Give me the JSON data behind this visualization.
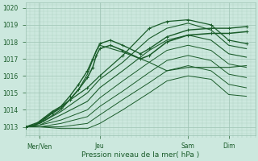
{
  "xlabel": "Pression niveau de la mer( hPa )",
  "ylim": [
    1012.5,
    1020.3
  ],
  "xlim": [
    0,
    130
  ],
  "yticks": [
    1013,
    1014,
    1015,
    1016,
    1017,
    1018,
    1019,
    1020
  ],
  "xtick_positions": [
    8,
    42,
    92,
    115
  ],
  "xtick_labels": [
    "Mer/Ven",
    "Jeu",
    "Sam",
    "Dim"
  ],
  "bg_color": "#cce8de",
  "grid_color": "#9ec4b4",
  "line_color": "#1a5c2a",
  "lines": [
    {
      "x": [
        0,
        8,
        20,
        35,
        42,
        55,
        70,
        80,
        92,
        105,
        115,
        125
      ],
      "y": [
        1013.0,
        1013.3,
        1014.2,
        1015.3,
        1016.0,
        1017.2,
        1018.8,
        1019.2,
        1019.3,
        1019.0,
        1018.1,
        1017.9
      ],
      "lw": 0.9,
      "mk": "+"
    },
    {
      "x": [
        0,
        8,
        20,
        35,
        42,
        55,
        70,
        80,
        92,
        105,
        115,
        125
      ],
      "y": [
        1013.0,
        1013.2,
        1013.9,
        1015.0,
        1015.8,
        1016.8,
        1018.2,
        1018.8,
        1019.1,
        1018.7,
        1017.8,
        1017.6
      ],
      "lw": 0.8,
      "mk": null
    },
    {
      "x": [
        0,
        8,
        20,
        35,
        42,
        55,
        70,
        80,
        92,
        105,
        115,
        125
      ],
      "y": [
        1013.0,
        1013.1,
        1013.7,
        1014.5,
        1015.3,
        1016.3,
        1017.5,
        1018.1,
        1018.4,
        1018.1,
        1017.3,
        1017.1
      ],
      "lw": 0.8,
      "mk": null
    },
    {
      "x": [
        0,
        8,
        20,
        35,
        42,
        55,
        70,
        80,
        92,
        105,
        115,
        125
      ],
      "y": [
        1013.0,
        1013.1,
        1013.4,
        1014.0,
        1014.7,
        1015.7,
        1016.8,
        1017.5,
        1017.8,
        1017.5,
        1016.7,
        1016.5
      ],
      "lw": 0.7,
      "mk": null
    },
    {
      "x": [
        0,
        8,
        20,
        35,
        42,
        55,
        70,
        80,
        92,
        105,
        115,
        125
      ],
      "y": [
        1013.0,
        1013.0,
        1013.2,
        1013.6,
        1014.2,
        1015.1,
        1016.2,
        1016.9,
        1017.2,
        1016.9,
        1016.1,
        1015.9
      ],
      "lw": 0.7,
      "mk": null
    },
    {
      "x": [
        0,
        8,
        20,
        35,
        42,
        55,
        70,
        80,
        92,
        105,
        115,
        125
      ],
      "y": [
        1013.0,
        1013.0,
        1013.0,
        1013.2,
        1013.7,
        1014.6,
        1015.6,
        1016.3,
        1016.6,
        1016.3,
        1015.5,
        1015.3
      ],
      "lw": 0.7,
      "mk": null
    },
    {
      "x": [
        0,
        8,
        20,
        35,
        42,
        55,
        70,
        80,
        92,
        105,
        115,
        125
      ],
      "y": [
        1013.0,
        1013.0,
        1012.9,
        1012.9,
        1013.2,
        1014.0,
        1015.0,
        1015.7,
        1016.0,
        1015.8,
        1014.9,
        1014.8
      ],
      "lw": 0.7,
      "mk": null
    },
    {
      "x": [
        0,
        8,
        20,
        30,
        35,
        40,
        42,
        55,
        70,
        80,
        92,
        105,
        115,
        125
      ],
      "y": [
        1013.0,
        1013.2,
        1014.0,
        1015.2,
        1016.1,
        1017.5,
        1017.8,
        1017.4,
        1016.8,
        1016.3,
        1016.5,
        1016.5,
        1016.5,
        1016.6
      ],
      "lw": 0.8,
      "mk": null
    },
    {
      "x": [
        0,
        5,
        10,
        15,
        20,
        25,
        30,
        35,
        38,
        42,
        48,
        55,
        65,
        70,
        80,
        92,
        105,
        115,
        125
      ],
      "y": [
        1013.0,
        1013.1,
        1013.5,
        1013.9,
        1014.2,
        1014.8,
        1015.5,
        1016.3,
        1017.0,
        1017.9,
        1018.1,
        1017.8,
        1017.3,
        1017.6,
        1018.3,
        1018.7,
        1018.8,
        1018.8,
        1018.9
      ],
      "lw": 1.0,
      "mk": "+"
    },
    {
      "x": [
        0,
        5,
        10,
        15,
        20,
        25,
        30,
        35,
        38,
        40,
        42,
        48,
        55,
        65,
        70,
        80,
        92,
        105,
        115,
        125
      ],
      "y": [
        1013.0,
        1013.1,
        1013.4,
        1013.8,
        1014.1,
        1014.6,
        1015.2,
        1015.9,
        1016.5,
        1017.2,
        1017.6,
        1017.8,
        1017.5,
        1017.0,
        1017.2,
        1018.0,
        1018.4,
        1018.5,
        1018.5,
        1018.6
      ],
      "lw": 1.1,
      "mk": "+"
    }
  ]
}
